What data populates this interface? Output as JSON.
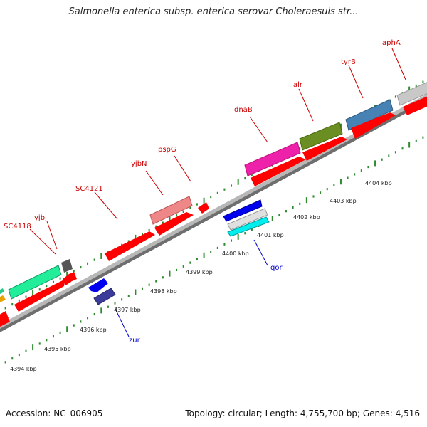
{
  "title": "Salmonella enterica subsp. enterica serovar Choleraesuis str...",
  "footer": {
    "accession": "Accession: NC_006905",
    "stats": "Topology: circular; Length: 4,755,700 bp; Genes: 4,516"
  },
  "colors": {
    "backbone": "#9c9c9c",
    "tick": "#2e8b2e",
    "forward_label": "#cc0000",
    "reverse_label": "#0000cc",
    "cds": "#ff0000"
  },
  "scale_labels": [
    "4394 kbp",
    "4395 kbp",
    "4396 kbp",
    "4397 kbp",
    "4398 kbp",
    "4399 kbp",
    "4400 kbp",
    "4401 kbp",
    "4402 kbp",
    "4403 kbp",
    "4404 kbp"
  ],
  "forward_labels": [
    "SC4118",
    "yjbJ",
    "SC4121",
    "yjbN",
    "pspG",
    "dnaB",
    "alr",
    "tyrB",
    "aphA"
  ],
  "reverse_labels": [
    "zur",
    "qor"
  ]
}
